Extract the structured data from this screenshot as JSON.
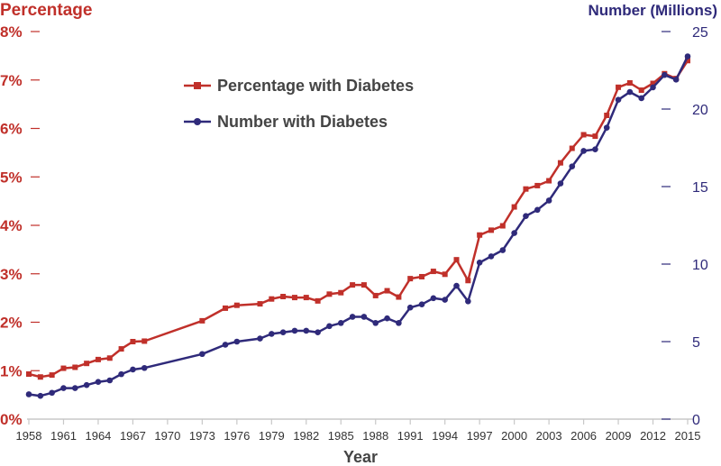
{
  "chart_data": {
    "type": "line",
    "xlabel": "Year",
    "y_left_label": "Percentage",
    "y_right_label": "Number (Millions)",
    "xlim": [
      1958,
      2015
    ],
    "ylim_left": [
      0,
      8
    ],
    "ylim_right": [
      0,
      25
    ],
    "x_ticks": [
      1958,
      1961,
      1964,
      1967,
      1970,
      1973,
      1976,
      1979,
      1982,
      1985,
      1988,
      1991,
      1994,
      1997,
      2000,
      2003,
      2006,
      2009,
      2012,
      2015
    ],
    "y_left_ticks": [
      "0%",
      "1%",
      "2%",
      "3%",
      "4%",
      "5%",
      "6%",
      "7%",
      "8%"
    ],
    "y_right_ticks": [
      "0",
      "5",
      "10",
      "15",
      "20",
      "25"
    ],
    "legend": [
      "Percentage with Diabetes",
      "Number with Diabetes"
    ],
    "colors": {
      "percentage": "#c0302a",
      "number": "#2f2a7a"
    },
    "series": [
      {
        "name": "Percentage with Diabetes",
        "axis": "left",
        "marker": "square",
        "x": [
          1958,
          1959,
          1960,
          1961,
          1962,
          1963,
          1964,
          1965,
          1966,
          1967,
          1968,
          1973,
          1975,
          1976,
          1978,
          1979,
          1980,
          1981,
          1982,
          1983,
          1984,
          1985,
          1986,
          1987,
          1988,
          1989,
          1990,
          1991,
          1992,
          1993,
          1994,
          1995,
          1996,
          1997,
          1998,
          1999,
          2000,
          2001,
          2002,
          2003,
          2004,
          2005,
          2006,
          2007,
          2008,
          2009,
          2010,
          2011,
          2012,
          2013,
          2014,
          2015
        ],
        "values": [
          0.93,
          0.87,
          0.91,
          1.05,
          1.07,
          1.15,
          1.23,
          1.26,
          1.45,
          1.6,
          1.61,
          2.03,
          2.29,
          2.35,
          2.38,
          2.48,
          2.53,
          2.51,
          2.51,
          2.44,
          2.58,
          2.61,
          2.77,
          2.77,
          2.55,
          2.65,
          2.52,
          2.9,
          2.94,
          3.05,
          2.99,
          3.29,
          2.86,
          3.8,
          3.9,
          3.99,
          4.38,
          4.75,
          4.82,
          4.92,
          5.29,
          5.59,
          5.87,
          5.84,
          6.27,
          6.85,
          6.94,
          6.79,
          6.93,
          7.13,
          7.03,
          7.4
        ]
      },
      {
        "name": "Number with Diabetes",
        "axis": "right",
        "marker": "circle",
        "x": [
          1958,
          1959,
          1960,
          1961,
          1962,
          1963,
          1964,
          1965,
          1966,
          1967,
          1968,
          1973,
          1975,
          1976,
          1978,
          1979,
          1980,
          1981,
          1982,
          1983,
          1984,
          1985,
          1986,
          1987,
          1988,
          1989,
          1990,
          1991,
          1992,
          1993,
          1994,
          1995,
          1996,
          1997,
          1998,
          1999,
          2000,
          2001,
          2002,
          2003,
          2004,
          2005,
          2006,
          2007,
          2008,
          2009,
          2010,
          2011,
          2012,
          2013,
          2014,
          2015
        ],
        "values": [
          1.6,
          1.5,
          1.7,
          2.0,
          2.0,
          2.2,
          2.4,
          2.5,
          2.9,
          3.2,
          3.3,
          4.2,
          4.8,
          5.0,
          5.2,
          5.5,
          5.6,
          5.7,
          5.7,
          5.6,
          6.0,
          6.2,
          6.6,
          6.6,
          6.2,
          6.5,
          6.2,
          7.2,
          7.4,
          7.8,
          7.7,
          8.6,
          7.6,
          10.1,
          10.5,
          10.9,
          12.0,
          13.1,
          13.5,
          14.1,
          15.2,
          16.3,
          17.3,
          17.4,
          18.8,
          20.6,
          21.1,
          20.7,
          21.4,
          22.2,
          21.9,
          23.4
        ]
      }
    ]
  }
}
